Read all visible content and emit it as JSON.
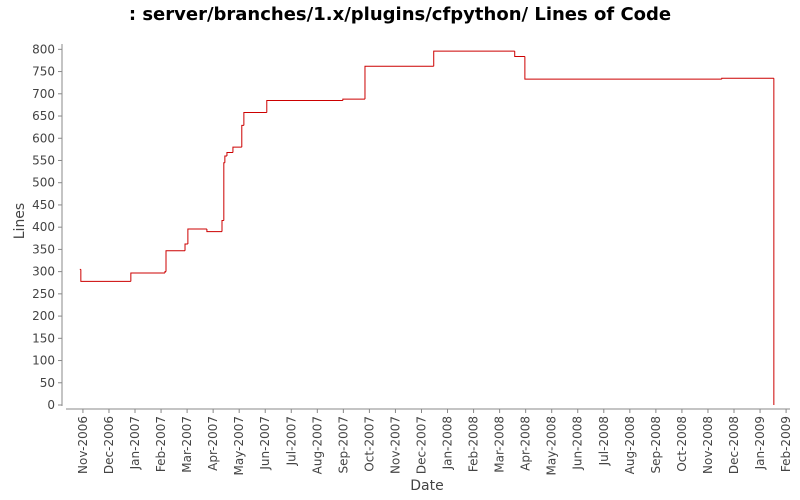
{
  "chart_data": {
    "type": "line",
    "step": "post",
    "title": ": server/branches/1.x/plugins/cfpython/ Lines of Code",
    "x_label": "Date",
    "y_label": "Lines",
    "color": "#cc0000",
    "x": [
      -0.12,
      -0.08,
      1.84,
      3.15,
      3.19,
      3.92,
      4.03,
      4.76,
      5.34,
      5.41,
      5.45,
      5.53,
      5.76,
      6.1,
      6.18,
      7.06,
      9.98,
      10.83,
      13.47,
      16.58,
      16.97,
      24.53,
      26.53
    ],
    "values": [
      305,
      278,
      297,
      300,
      347,
      362,
      396,
      390,
      415,
      545,
      560,
      568,
      580,
      629,
      658,
      685,
      688,
      762,
      796,
      784,
      733,
      735,
      0
    ],
    "xlim": [
      -0.65,
      27.15
    ],
    "xticks": [
      {
        "value": 0,
        "label": "Nov-2006"
      },
      {
        "value": 1,
        "label": "Dec-2006"
      },
      {
        "value": 2,
        "label": "Jan-2007"
      },
      {
        "value": 3,
        "label": "Feb-2007"
      },
      {
        "value": 4,
        "label": "Mar-2007"
      },
      {
        "value": 5,
        "label": "Apr-2007"
      },
      {
        "value": 6,
        "label": "May-2007"
      },
      {
        "value": 7,
        "label": "Jun-2007"
      },
      {
        "value": 8,
        "label": "Jul-2007"
      },
      {
        "value": 9,
        "label": "Aug-2007"
      },
      {
        "value": 10,
        "label": "Sep-2007"
      },
      {
        "value": 11,
        "label": "Oct-2007"
      },
      {
        "value": 12,
        "label": "Nov-2007"
      },
      {
        "value": 13,
        "label": "Dec-2007"
      },
      {
        "value": 14,
        "label": "Jan-2008"
      },
      {
        "value": 15,
        "label": "Feb-2008"
      },
      {
        "value": 16,
        "label": "Mar-2008"
      },
      {
        "value": 17,
        "label": "Apr-2008"
      },
      {
        "value": 18,
        "label": "May-2008"
      },
      {
        "value": 19,
        "label": "Jun-2008"
      },
      {
        "value": 20,
        "label": "Jul-2008"
      },
      {
        "value": 21,
        "label": "Aug-2008"
      },
      {
        "value": 22,
        "label": "Sep-2008"
      },
      {
        "value": 23,
        "label": "Oct-2008"
      },
      {
        "value": 24,
        "label": "Nov-2008"
      },
      {
        "value": 25,
        "label": "Dec-2008"
      },
      {
        "value": 26,
        "label": "Jan-2009"
      },
      {
        "value": 27,
        "label": "Feb-2009"
      }
    ],
    "ylim": [
      0,
      812
    ],
    "yticks": [
      0,
      50,
      100,
      150,
      200,
      250,
      300,
      350,
      400,
      450,
      500,
      550,
      600,
      650,
      700,
      750,
      800
    ]
  }
}
